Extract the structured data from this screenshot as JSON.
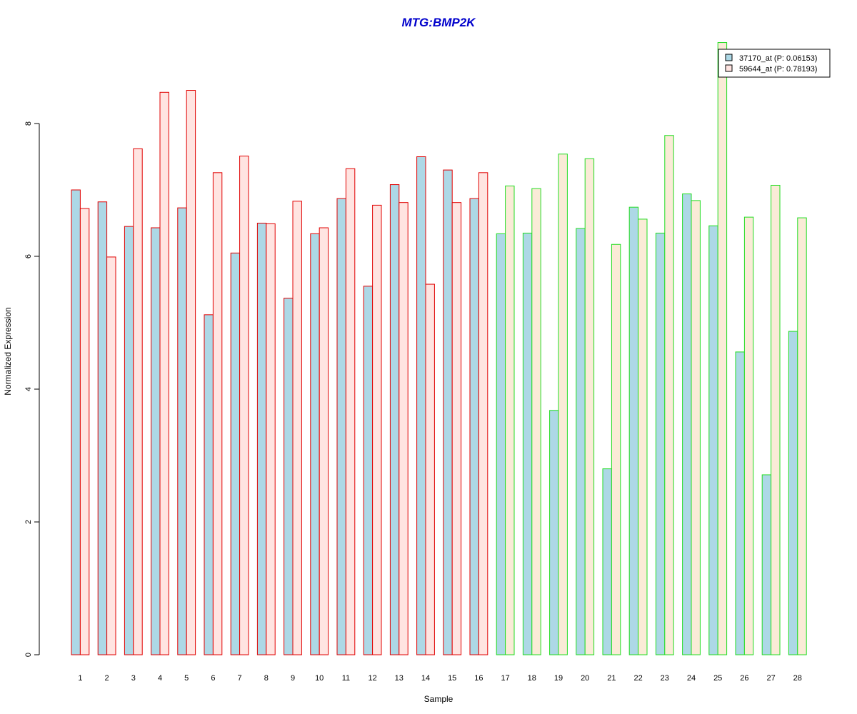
{
  "chart_data": {
    "type": "bar",
    "title": "MTG:BMP2K",
    "xlabel": "Sample",
    "ylabel": "Normalized Expression",
    "ylim": [
      0,
      9.3
    ],
    "yticks": [
      0,
      2,
      4,
      6,
      8
    ],
    "categories": [
      "1",
      "2",
      "3",
      "4",
      "5",
      "6",
      "7",
      "8",
      "9",
      "10",
      "11",
      "12",
      "13",
      "14",
      "15",
      "16",
      "17",
      "18",
      "19",
      "20",
      "21",
      "22",
      "23",
      "24",
      "25",
      "26",
      "27",
      "28"
    ],
    "groups": [
      {
        "from": 1,
        "to": 16,
        "border_color": "#E00000"
      },
      {
        "from": 17,
        "to": 28,
        "border_color": "#22DD22"
      }
    ],
    "legend_position": "top-right",
    "series": [
      {
        "name": "37170_at (P: 0.06153)",
        "fill": "#ADD8E6",
        "values": [
          7.0,
          6.82,
          6.45,
          6.43,
          6.73,
          5.12,
          6.05,
          6.5,
          5.37,
          6.34,
          6.87,
          5.55,
          7.08,
          7.5,
          7.3,
          6.87,
          6.34,
          6.35,
          3.68,
          6.42,
          2.8,
          6.74,
          6.35,
          6.94,
          6.46,
          4.56,
          2.71,
          4.87
        ]
      },
      {
        "name": "59644_at (P: 0.78193)",
        "fill_group1": "#FFE4E1",
        "fill_group2": "#FAEBD7",
        "values": [
          6.72,
          5.99,
          7.62,
          8.47,
          8.5,
          7.26,
          7.51,
          6.49,
          6.83,
          6.43,
          7.32,
          6.77,
          6.81,
          5.58,
          6.81,
          7.26,
          7.06,
          7.02,
          7.54,
          7.47,
          6.18,
          6.56,
          7.82,
          6.84,
          9.22,
          6.59,
          7.07,
          6.58
        ]
      }
    ]
  }
}
